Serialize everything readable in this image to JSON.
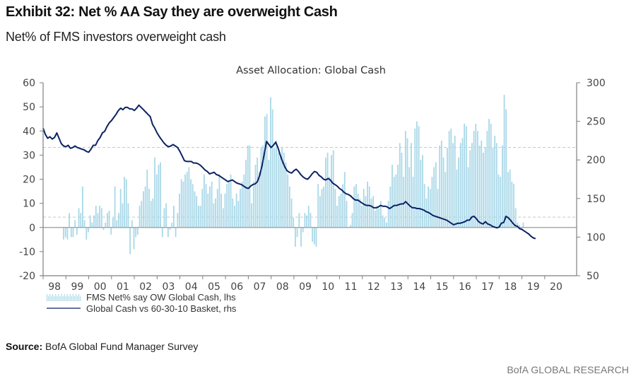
{
  "header": {
    "title": "Exhibit 32: Net % AA Say they are overweight Cash",
    "subtitle": "Net% of FMS investors overweight cash"
  },
  "footer": {
    "source_label": "Source:",
    "source_text": "BofA Global Fund Manager Survey",
    "brand": "BofA GLOBAL RESEARCH"
  },
  "colors": {
    "bars": "#a9d8e8",
    "line": "#0b2264",
    "axis": "#808080",
    "zero_line": "#9a9a9a",
    "dashed": "#c8c8c8",
    "tick_text": "#444444"
  },
  "chart_data": {
    "type": "bar+line",
    "title": "Asset Allocation: Global Cash",
    "xlabel": "",
    "ylabel_left": "",
    "ylabel_right": "",
    "x_tick_labels": [
      "98",
      "99",
      "00",
      "01",
      "02",
      "03",
      "04",
      "05",
      "06",
      "07",
      "08",
      "09",
      "10",
      "11",
      "12",
      "13",
      "14",
      "15",
      "16",
      "17",
      "18",
      "19",
      "20"
    ],
    "x_range": [
      1998.0,
      2021.4
    ],
    "y_left": {
      "range": [
        -20,
        60
      ],
      "ticks": [
        60,
        50,
        40,
        30,
        20,
        10,
        0,
        -10,
        -20
      ]
    },
    "y_right": {
      "range": [
        50,
        300
      ],
      "ticks": [
        300,
        250,
        200,
        150,
        100,
        50
      ]
    },
    "reference_lines": [
      {
        "axis": "left",
        "value": 33.2,
        "style": "dashed",
        "note": "upper band"
      },
      {
        "axis": "left",
        "value": 4.3,
        "style": "dashed",
        "note": "lower band"
      },
      {
        "axis": "left",
        "value": 0,
        "style": "solid",
        "note": "zero line"
      }
    ],
    "legend": {
      "placement": "bottom-left",
      "entries": [
        {
          "label": "FMS Net% say OW Global Cash, lhs",
          "type": "bar"
        },
        {
          "label": "Global Cash vs 60-30-10 Basket, rhs",
          "type": "line"
        }
      ]
    },
    "series": [
      {
        "name": "FMS Net% say OW Global Cash, lhs",
        "axis": "left",
        "type": "bar",
        "start": 1998.9,
        "step": 0.0833,
        "values": [
          -5,
          -4,
          -5,
          6,
          -4,
          -4,
          3,
          -3,
          8,
          6,
          17,
          3,
          -5,
          -2,
          5,
          2,
          5,
          9,
          6,
          9,
          8,
          -1,
          2,
          6,
          7,
          -3,
          4,
          17,
          3,
          6,
          16,
          10,
          21,
          20,
          10,
          -11,
          3,
          -9,
          -4,
          -3,
          9,
          11,
          15,
          17,
          24,
          16,
          11,
          12,
          29,
          22,
          26,
          27,
          -4,
          8,
          10,
          -4,
          -1,
          2,
          9,
          -4,
          6,
          14,
          20,
          19,
          22,
          23,
          25,
          20,
          18,
          15,
          13,
          9,
          9,
          16,
          22,
          18,
          14,
          17,
          19,
          10,
          12,
          16,
          22,
          14,
          8,
          14,
          18,
          19,
          22,
          12,
          9,
          14,
          11,
          16,
          19,
          22,
          28,
          34,
          34,
          10,
          19,
          26,
          29,
          23,
          33,
          34,
          46,
          47,
          28,
          54,
          49,
          33,
          36,
          31,
          29,
          33,
          31,
          27,
          22,
          17,
          12,
          4,
          -8,
          -4,
          6,
          -8,
          -2,
          6,
          5,
          9,
          6,
          -6,
          -7,
          -8,
          18,
          13,
          16,
          17,
          29,
          31,
          21,
          30,
          32,
          16,
          9,
          13,
          14,
          18,
          23,
          11,
          0,
          1,
          6,
          17,
          18,
          14,
          12,
          9,
          16,
          13,
          19,
          17,
          12,
          13,
          7,
          9,
          8,
          11,
          5,
          4,
          2,
          11,
          17,
          26,
          21,
          22,
          26,
          35,
          31,
          21,
          40,
          37,
          25,
          35,
          21,
          41,
          44,
          42,
          28,
          30,
          18,
          12,
          17,
          16,
          21,
          25,
          27,
          16,
          34,
          36,
          29,
          23,
          33,
          40,
          41,
          35,
          38,
          24,
          29,
          35,
          37,
          43,
          42,
          25,
          32,
          35,
          40,
          43,
          40,
          34,
          36,
          31,
          33,
          40,
          45,
          43,
          33,
          38,
          35,
          22,
          21,
          34,
          55,
          49,
          23,
          24,
          19,
          18,
          8,
          2,
          1,
          -1,
          2
        ]
      },
      {
        "name": "Global Cash vs 60-30-10 Basket, rhs",
        "axis": "right",
        "type": "line",
        "start": 1998.0,
        "step": 0.1,
        "values": [
          241,
          233,
          228,
          230,
          227,
          229,
          235,
          228,
          221,
          218,
          217,
          219,
          215,
          216,
          218,
          216,
          215,
          214,
          213,
          211,
          210,
          214,
          219,
          219,
          225,
          229,
          235,
          237,
          243,
          248,
          251,
          255,
          259,
          264,
          267,
          265,
          268,
          268,
          266,
          266,
          264,
          267,
          271,
          268,
          265,
          262,
          259,
          256,
          246,
          241,
          235,
          230,
          226,
          222,
          219,
          217,
          218,
          220,
          218,
          216,
          211,
          205,
          199,
          198,
          198,
          198,
          196,
          196,
          195,
          193,
          190,
          187,
          185,
          182,
          183,
          184,
          181,
          180,
          178,
          176,
          174,
          172,
          173,
          174,
          172,
          170,
          169,
          168,
          166,
          164,
          163,
          166,
          168,
          169,
          172,
          180,
          192,
          208,
          224,
          220,
          216,
          219,
          223,
          216,
          206,
          198,
          191,
          186,
          184,
          183,
          186,
          188,
          185,
          181,
          178,
          176,
          175,
          178,
          182,
          185,
          184,
          180,
          178,
          175,
          174,
          176,
          174,
          170,
          168,
          166,
          163,
          161,
          158,
          156,
          155,
          153,
          150,
          148,
          148,
          146,
          144,
          142,
          141,
          141,
          140,
          138,
          138,
          139,
          141,
          140,
          140,
          139,
          137,
          139,
          141,
          141,
          142,
          143,
          143,
          146,
          143,
          140,
          138,
          138,
          137,
          137,
          136,
          135,
          133,
          132,
          130,
          128,
          127,
          126,
          125,
          124,
          123,
          122,
          120,
          118,
          116,
          117,
          118,
          118,
          119,
          120,
          122,
          122,
          126,
          127,
          124,
          120,
          118,
          117,
          120,
          117,
          116,
          114,
          113,
          112,
          113,
          118,
          119,
          127,
          125,
          122,
          118,
          115,
          114,
          111,
          110,
          108,
          106,
          104,
          101,
          99,
          98
        ]
      }
    ]
  }
}
